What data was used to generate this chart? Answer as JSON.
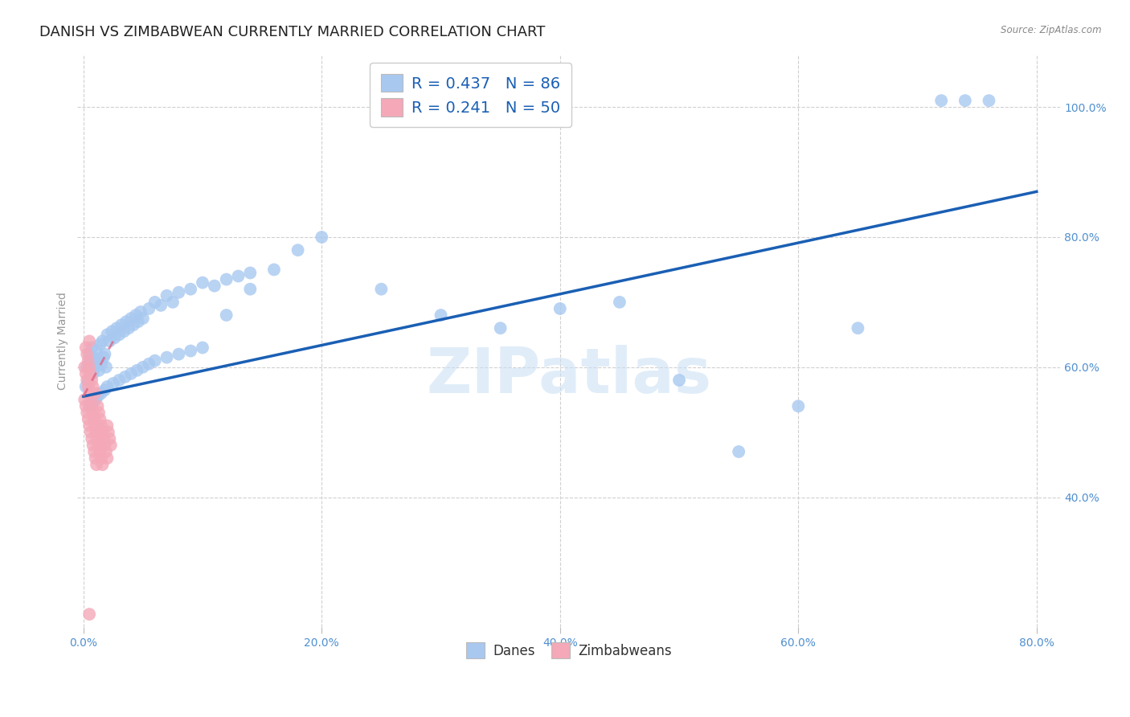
{
  "title": "DANISH VS ZIMBABWEAN CURRENTLY MARRIED CORRELATION CHART",
  "source": "Source: ZipAtlas.com",
  "ylabel": "Currently Married",
  "danes_color": "#a8c8f0",
  "zim_color": "#f4a8b8",
  "danes_line_color": "#1a5fb4",
  "zim_line_color": "#e06080",
  "watermark": "ZIPatlas",
  "background_color": "#ffffff",
  "grid_color": "#d0d0d0",
  "title_fontsize": 13,
  "axis_label_fontsize": 10,
  "tick_fontsize": 10,
  "danes_scatter_x": [
    0.002,
    0.003,
    0.004,
    0.005,
    0.006,
    0.007,
    0.008,
    0.009,
    0.01,
    0.011,
    0.012,
    0.013,
    0.014,
    0.015,
    0.016,
    0.017,
    0.018,
    0.019,
    0.02,
    0.022,
    0.024,
    0.026,
    0.028,
    0.03,
    0.032,
    0.034,
    0.036,
    0.038,
    0.04,
    0.042,
    0.044,
    0.046,
    0.048,
    0.05,
    0.055,
    0.06,
    0.065,
    0.07,
    0.075,
    0.08,
    0.09,
    0.1,
    0.11,
    0.12,
    0.13,
    0.14,
    0.005,
    0.008,
    0.01,
    0.012,
    0.015,
    0.018,
    0.02,
    0.025,
    0.03,
    0.035,
    0.04,
    0.045,
    0.05,
    0.055,
    0.06,
    0.07,
    0.08,
    0.09,
    0.1,
    0.12,
    0.14,
    0.16,
    0.18,
    0.2,
    0.25,
    0.3,
    0.35,
    0.4,
    0.45,
    0.5,
    0.55,
    0.6,
    0.65,
    0.72,
    0.74,
    0.76
  ],
  "danes_scatter_y": [
    0.57,
    0.6,
    0.58,
    0.62,
    0.61,
    0.63,
    0.59,
    0.615,
    0.6,
    0.625,
    0.61,
    0.595,
    0.635,
    0.605,
    0.64,
    0.615,
    0.62,
    0.6,
    0.65,
    0.64,
    0.655,
    0.645,
    0.66,
    0.65,
    0.665,
    0.655,
    0.67,
    0.66,
    0.675,
    0.665,
    0.68,
    0.67,
    0.685,
    0.675,
    0.69,
    0.7,
    0.695,
    0.71,
    0.7,
    0.715,
    0.72,
    0.73,
    0.725,
    0.735,
    0.74,
    0.745,
    0.54,
    0.545,
    0.55,
    0.555,
    0.56,
    0.565,
    0.57,
    0.575,
    0.58,
    0.585,
    0.59,
    0.595,
    0.6,
    0.605,
    0.61,
    0.615,
    0.62,
    0.625,
    0.63,
    0.68,
    0.72,
    0.75,
    0.78,
    0.8,
    0.72,
    0.68,
    0.66,
    0.69,
    0.7,
    0.58,
    0.47,
    0.54,
    0.66,
    1.01,
    1.01,
    1.01
  ],
  "zim_scatter_x": [
    0.001,
    0.001,
    0.002,
    0.002,
    0.002,
    0.003,
    0.003,
    0.003,
    0.004,
    0.004,
    0.004,
    0.005,
    0.005,
    0.005,
    0.005,
    0.006,
    0.006,
    0.006,
    0.007,
    0.007,
    0.007,
    0.008,
    0.008,
    0.008,
    0.009,
    0.009,
    0.01,
    0.01,
    0.01,
    0.011,
    0.011,
    0.012,
    0.012,
    0.013,
    0.013,
    0.014,
    0.014,
    0.015,
    0.015,
    0.016,
    0.016,
    0.017,
    0.018,
    0.019,
    0.02,
    0.02,
    0.021,
    0.022,
    0.023,
    0.005
  ],
  "zim_scatter_y": [
    0.55,
    0.6,
    0.54,
    0.59,
    0.63,
    0.53,
    0.58,
    0.62,
    0.52,
    0.57,
    0.61,
    0.51,
    0.56,
    0.6,
    0.64,
    0.5,
    0.55,
    0.59,
    0.49,
    0.54,
    0.58,
    0.48,
    0.53,
    0.57,
    0.47,
    0.52,
    0.46,
    0.51,
    0.56,
    0.45,
    0.5,
    0.49,
    0.54,
    0.48,
    0.53,
    0.47,
    0.52,
    0.46,
    0.51,
    0.45,
    0.5,
    0.49,
    0.48,
    0.47,
    0.46,
    0.51,
    0.5,
    0.49,
    0.48,
    0.22
  ],
  "danes_trend_x": [
    0.0,
    0.8
  ],
  "danes_trend_y": [
    0.555,
    0.87
  ],
  "zim_trend_x": [
    0.0,
    0.025
  ],
  "zim_trend_y": [
    0.555,
    0.64
  ],
  "xlim": [
    -0.005,
    0.82
  ],
  "ylim": [
    0.2,
    1.08
  ],
  "xticks": [
    0.0,
    0.2,
    0.4,
    0.6,
    0.8
  ],
  "xtick_labels": [
    "0.0%",
    "20.0%",
    "40.0%",
    "60.0%",
    "80.0%"
  ],
  "yticks": [
    0.4,
    0.6,
    0.8,
    1.0
  ],
  "ytick_labels": [
    "40.0%",
    "60.0%",
    "80.0%",
    "100.0%"
  ]
}
